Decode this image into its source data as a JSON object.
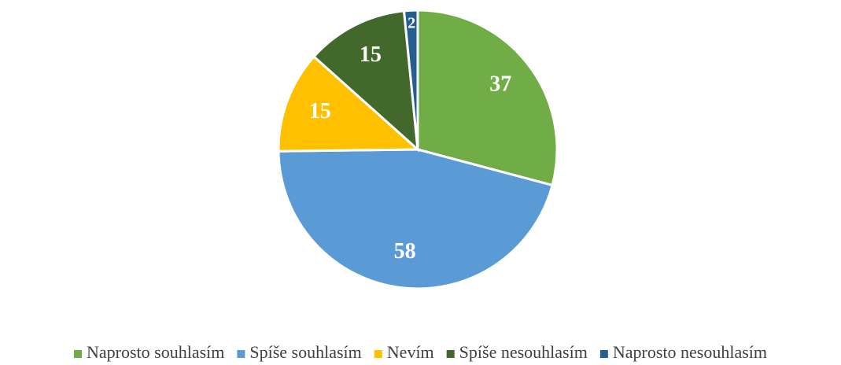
{
  "chart_data": {
    "type": "pie",
    "categories": [
      "Naprosto souhlasím",
      "Spíše souhlasím",
      "Nevím",
      "Spíše nesouhlasím",
      "Naprosto nesouhlasím"
    ],
    "values": [
      37,
      58,
      15,
      15,
      2
    ],
    "colors": [
      "#70ad47",
      "#5b9bd5",
      "#ffc000",
      "#43682b",
      "#255e91"
    ],
    "legend": "bottom"
  }
}
